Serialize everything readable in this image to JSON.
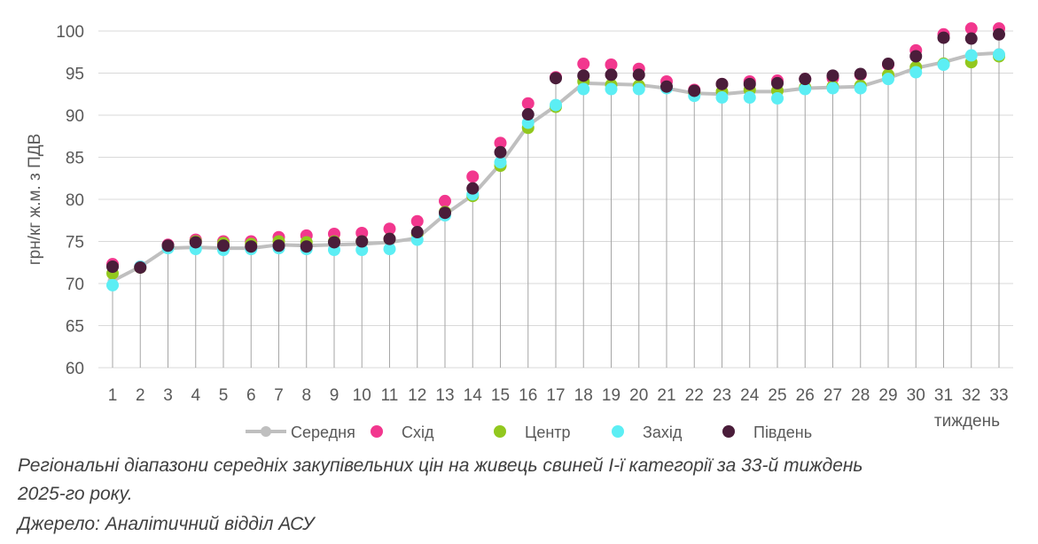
{
  "chart_data": {
    "type": "line",
    "title": "",
    "xlabel": "тиждень",
    "ylabel": "грн/кг ж.м. з ПДВ",
    "categories": [
      "1",
      "2",
      "3",
      "4",
      "5",
      "6",
      "7",
      "8",
      "9",
      "10",
      "11",
      "12",
      "13",
      "14",
      "15",
      "16",
      "17",
      "18",
      "19",
      "20",
      "21",
      "22",
      "23",
      "24",
      "25",
      "26",
      "27",
      "28",
      "29",
      "30",
      "31",
      "32",
      "33"
    ],
    "ylim": [
      60,
      100
    ],
    "yticks": [
      60,
      65,
      70,
      75,
      80,
      85,
      90,
      95,
      100
    ],
    "grid": "horizontal",
    "legend_position": "bottom",
    "series": [
      {
        "name": "Середня",
        "style": "line-markers",
        "color": "#BFBFBF",
        "values": [
          70.3,
          72.0,
          74.2,
          74.3,
          74.2,
          74.2,
          74.6,
          74.5,
          74.6,
          74.7,
          74.9,
          75.4,
          78.2,
          80.5,
          84.2,
          88.8,
          91.1,
          93.8,
          93.7,
          93.6,
          93.2,
          92.6,
          92.5,
          92.8,
          92.8,
          93.2,
          93.3,
          93.4,
          94.4,
          95.6,
          96.3,
          97.2,
          97.4
        ]
      },
      {
        "name": "Схід",
        "style": "markers",
        "color": "#F2378E",
        "values": [
          72.3,
          72.0,
          74.6,
          75.2,
          75.0,
          75.0,
          75.5,
          75.7,
          75.9,
          76.0,
          76.5,
          77.4,
          79.8,
          82.7,
          86.7,
          91.4,
          94.5,
          96.1,
          96.0,
          95.5,
          94.0,
          93.0,
          93.7,
          94.0,
          94.1,
          94.3,
          94.4,
          94.8,
          96.0,
          97.7,
          99.6,
          100.3,
          100.3
        ]
      },
      {
        "name": "Центр",
        "style": "markers",
        "color": "#92C81E",
        "values": [
          71.2,
          71.9,
          74.4,
          75.0,
          74.8,
          74.7,
          75.0,
          74.9,
          75.0,
          75.0,
          75.3,
          75.9,
          78.5,
          80.4,
          84.0,
          88.5,
          91.0,
          94.0,
          93.6,
          93.5,
          93.3,
          92.6,
          92.8,
          93.0,
          92.9,
          93.3,
          93.4,
          93.5,
          94.8,
          95.7,
          96.1,
          96.3,
          97.0
        ]
      },
      {
        "name": "Захід",
        "style": "markers",
        "color": "#5CEEF4",
        "values": [
          69.8,
          72.0,
          74.2,
          74.1,
          74.0,
          74.1,
          74.2,
          74.1,
          74.0,
          74.0,
          74.1,
          75.2,
          78.1,
          80.6,
          84.4,
          89.1,
          91.2,
          93.1,
          93.1,
          93.1,
          93.2,
          92.3,
          92.1,
          92.1,
          92.0,
          93.1,
          93.2,
          93.2,
          94.3,
          95.1,
          96.0,
          97.1,
          97.2
        ]
      },
      {
        "name": "Південь",
        "style": "markers",
        "color": "#4A1D3A",
        "values": [
          72.0,
          71.9,
          74.5,
          74.9,
          74.5,
          74.4,
          74.5,
          74.4,
          74.9,
          75.0,
          75.3,
          76.1,
          78.4,
          81.3,
          85.6,
          90.1,
          94.4,
          94.7,
          94.8,
          94.8,
          93.4,
          92.9,
          93.7,
          93.7,
          93.8,
          94.3,
          94.7,
          94.9,
          96.1,
          97.0,
          99.2,
          99.1,
          99.6
        ]
      }
    ]
  },
  "caption": {
    "line1": "Регіональні діапазони середніх закупівельних цін на живець свиней І-ї категорії за 33-й тиждень",
    "line2": "2025-го року.",
    "source": "Джерело: Аналітичний відділ АСУ"
  }
}
